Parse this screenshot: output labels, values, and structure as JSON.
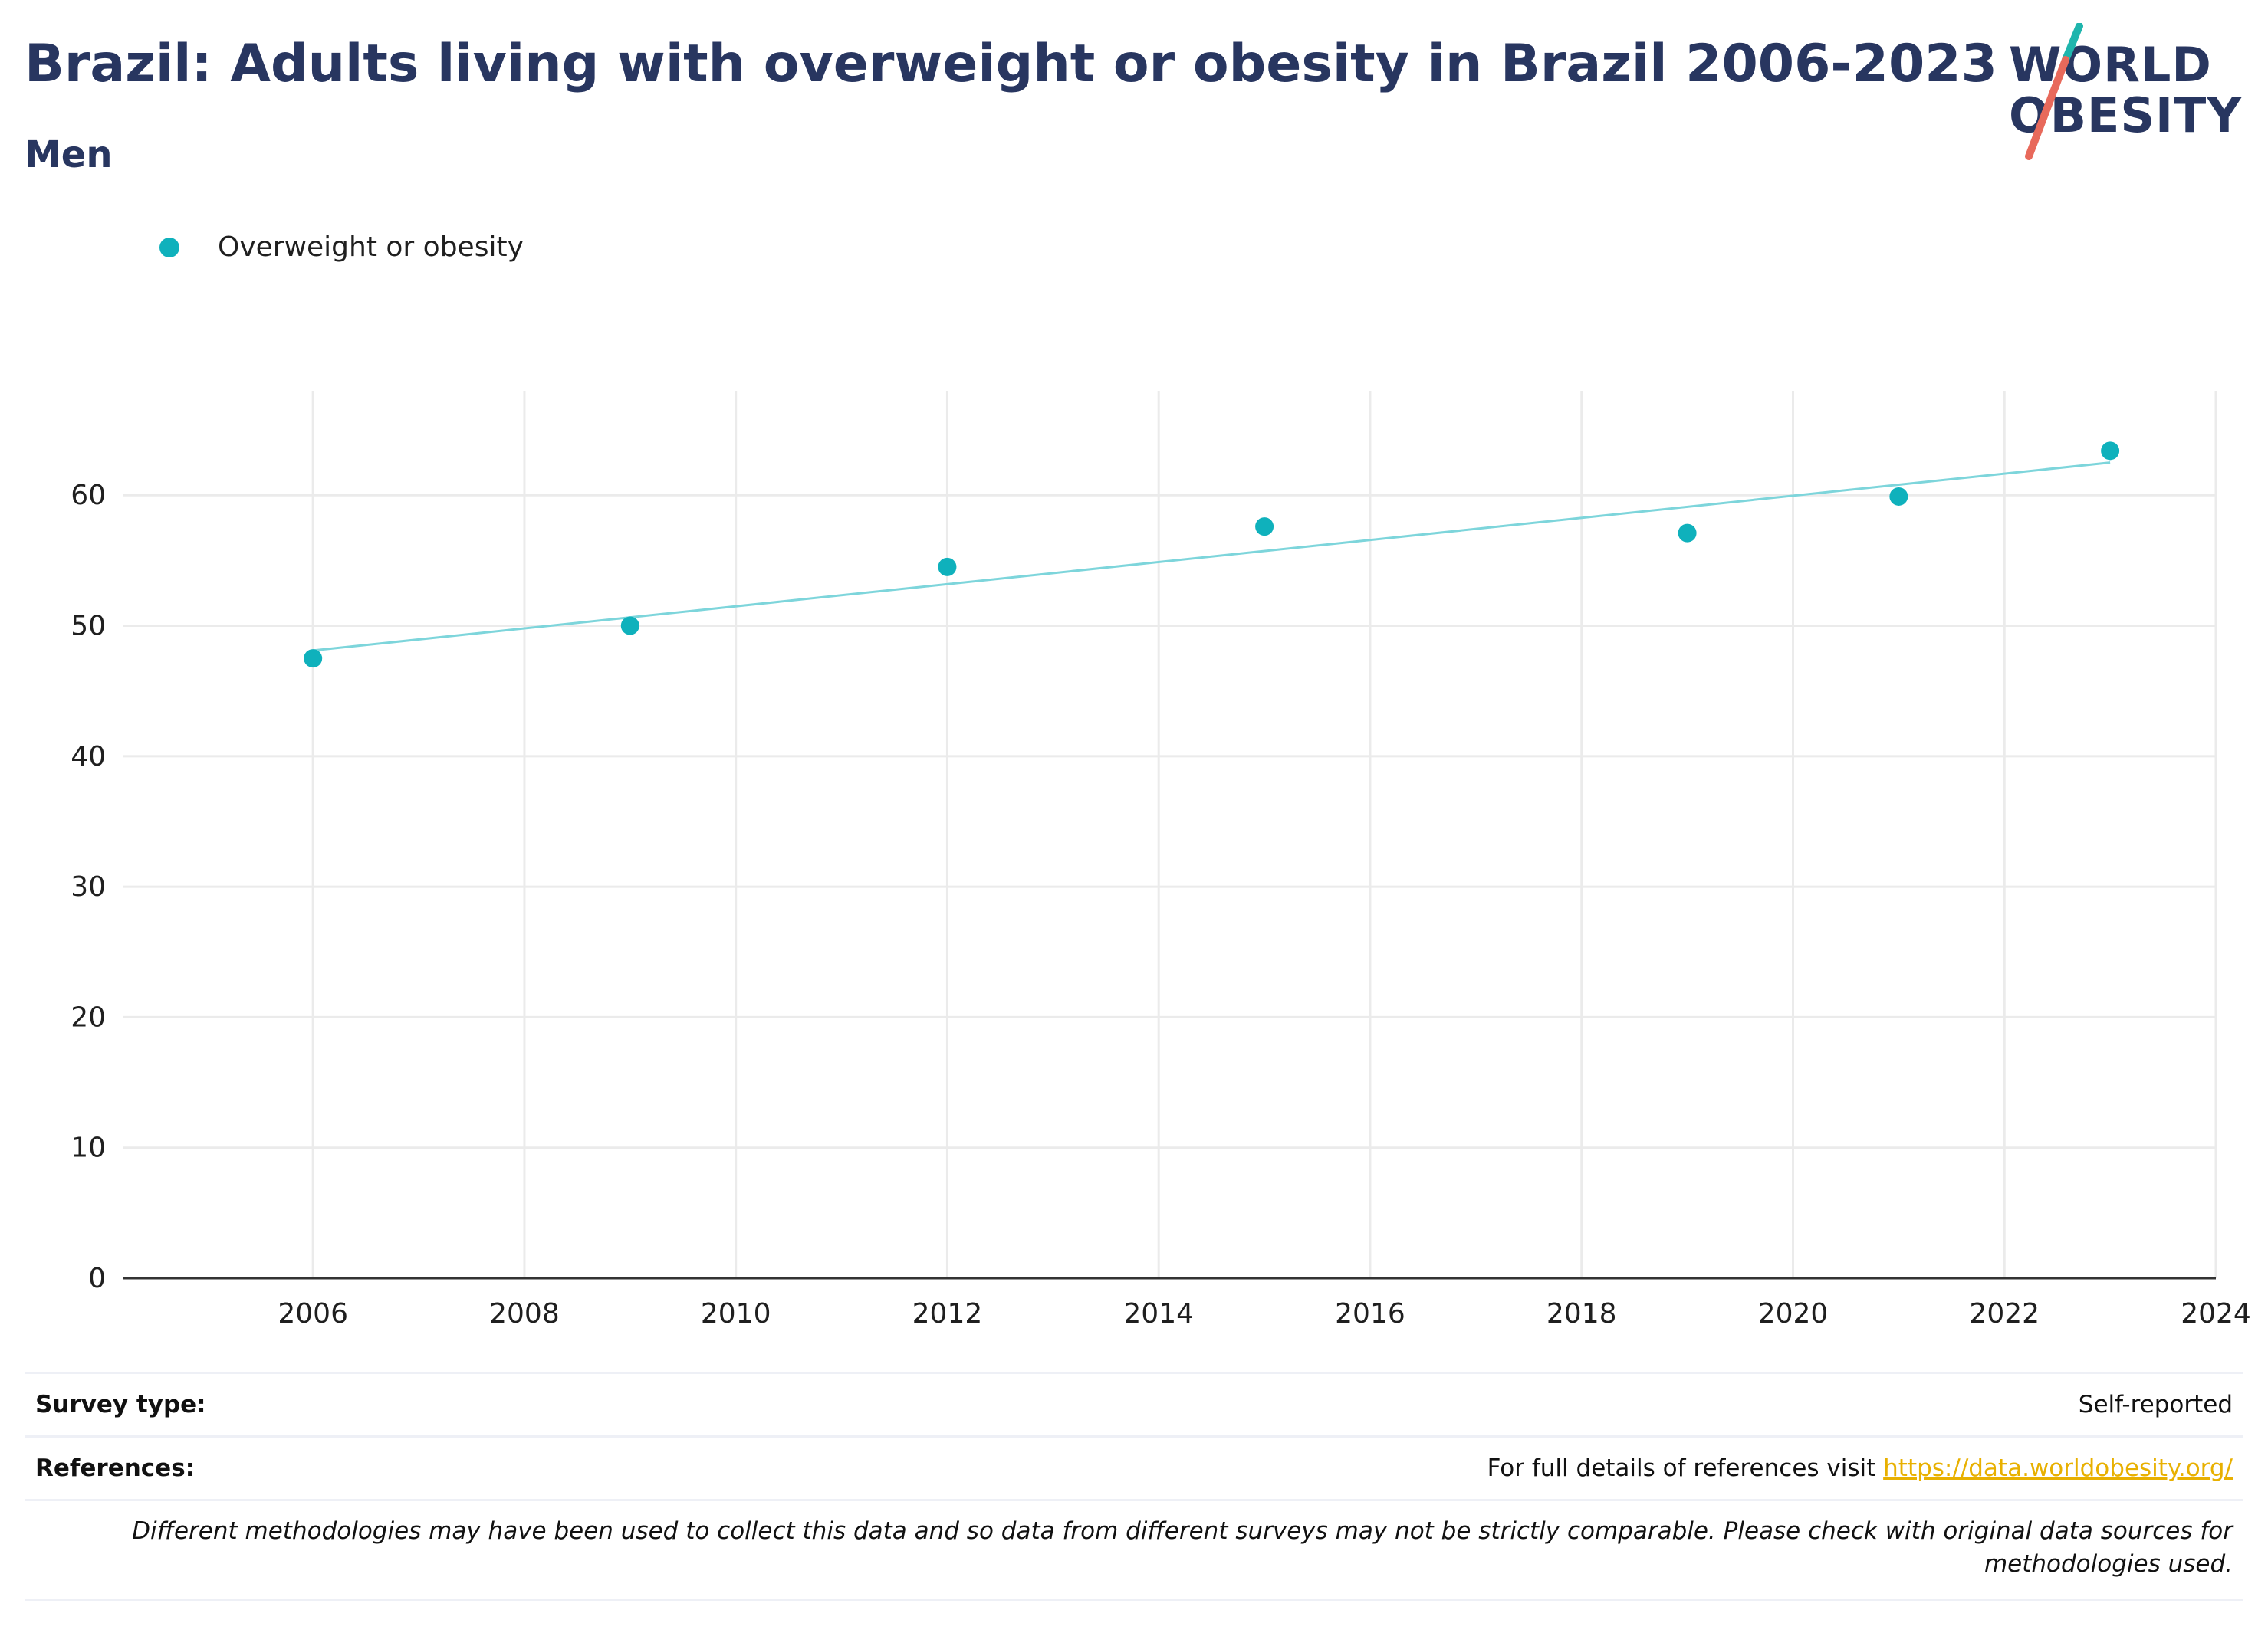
{
  "header": {
    "title": "Brazil: Adults living with overweight or obesity in Brazil 2006-2023",
    "subtitle": "Men"
  },
  "logo": {
    "line1": "WORLD",
    "line2": "OBESITY",
    "accent_teal": "#1fb5ad",
    "accent_red": "#e8695b"
  },
  "colors": {
    "series": "#0fb1bc",
    "trend": "#7dd5db",
    "grid": "#ebebeb",
    "axis": "#333333",
    "title": "#283660"
  },
  "chart_data": {
    "type": "scatter",
    "series": [
      {
        "name": "Overweight or obesity",
        "x": [
          2006,
          2009,
          2012,
          2015,
          2019,
          2021,
          2023
        ],
        "y": [
          47.5,
          50.0,
          54.5,
          57.6,
          57.1,
          59.9,
          63.4
        ]
      }
    ],
    "trendline": {
      "x": [
        2006,
        2023
      ],
      "y": [
        48.1,
        62.5
      ]
    },
    "xlim": [
      2004.2,
      2024
    ],
    "ylim": [
      0,
      68
    ],
    "xticks": [
      2006,
      2008,
      2010,
      2012,
      2014,
      2016,
      2018,
      2020,
      2022,
      2024
    ],
    "yticks": [
      0,
      10,
      20,
      30,
      40,
      50,
      60
    ],
    "grid": true,
    "legend_position": "top-left"
  },
  "footer": {
    "survey_type_label": "Survey type:",
    "survey_type_value": "Self-reported",
    "references_label": "References:",
    "references_text": "For full details of references visit ",
    "references_link": "https://data.worldobesity.org/",
    "note": "Different methodologies may have been used to collect this data and so data from different surveys may not be strictly comparable. Please check with original data sources for methodologies used."
  }
}
